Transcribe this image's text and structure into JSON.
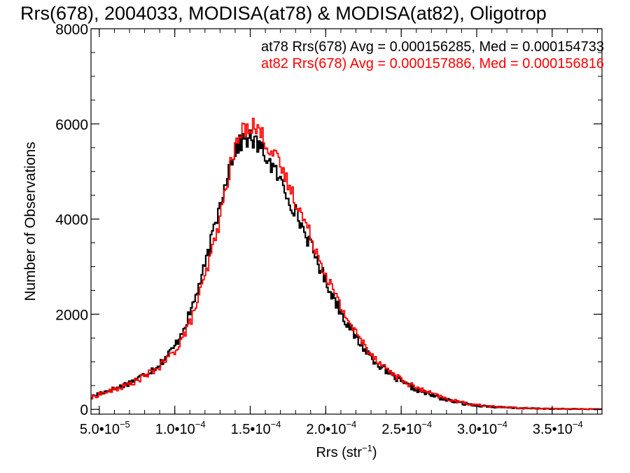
{
  "chart_data": {
    "type": "line",
    "title": "Rrs(678), 2004033, MODISA(at78) & MODISA(at82), Oligotrop",
    "xlabel": "Rrs (str",
    "xlabel_sup": "−1",
    "xlabel_close": ")",
    "ylabel": "Number of Observations",
    "xlim": [
      4.45e-05,
      0.000383
    ],
    "ylim": [
      -100,
      8000
    ],
    "x_ticks": [
      {
        "v": 5e-05,
        "m": "5.0•10",
        "e": "−5"
      },
      {
        "v": 0.0001,
        "m": "1.0•10",
        "e": "−4"
      },
      {
        "v": 0.00015,
        "m": "1.5•10",
        "e": "−4"
      },
      {
        "v": 0.0002,
        "m": "2.0•10",
        "e": "−4"
      },
      {
        "v": 0.00025,
        "m": "2.5•10",
        "e": "−4"
      },
      {
        "v": 0.0003,
        "m": "3.0•10",
        "e": "−4"
      },
      {
        "v": 0.00035,
        "m": "3.5•10",
        "e": "−4"
      }
    ],
    "y_ticks": [
      {
        "v": 0,
        "label": "0"
      },
      {
        "v": 2000,
        "label": "2000"
      },
      {
        "v": 4000,
        "label": "4000"
      },
      {
        "v": 6000,
        "label": "6000"
      },
      {
        "v": 8000,
        "label": "8000"
      }
    ],
    "series": [
      {
        "name": "at78",
        "color": "#000000",
        "annotation": "at78 Rrs(678) Avg = 0.000156285, Med = 0.000154733",
        "x": [
          4.45e-05,
          5e-05,
          6e-05,
          7e-05,
          8e-05,
          9e-05,
          0.0001,
          0.00011,
          0.00012,
          0.00013,
          0.000135,
          0.00014,
          0.000145,
          0.00015,
          0.000155,
          0.00016,
          0.00017,
          0.00018,
          0.00019,
          0.0002,
          0.00021,
          0.00022,
          0.00023,
          0.00024,
          0.00025,
          0.00026,
          0.00027,
          0.00028,
          0.00029,
          0.0003,
          0.00031,
          0.00032,
          0.00033,
          0.00034,
          0.00035,
          0.00036,
          0.00037,
          0.00038,
          0.000383
        ],
        "y": [
          250,
          340,
          430,
          560,
          730,
          950,
          1320,
          2000,
          3000,
          4300,
          5000,
          5450,
          5650,
          5700,
          5550,
          5350,
          4800,
          4150,
          3450,
          2700,
          2050,
          1500,
          1100,
          800,
          570,
          420,
          300,
          200,
          130,
          85,
          55,
          35,
          25,
          18,
          12,
          9,
          7,
          5,
          5
        ]
      },
      {
        "name": "at82",
        "color": "#ff0000",
        "annotation": "at82 Rrs(678) Avg = 0.000157886, Med = 0.000156816",
        "x": [
          4.45e-05,
          5e-05,
          6e-05,
          7e-05,
          8e-05,
          9e-05,
          0.0001,
          0.00011,
          0.00012,
          0.00013,
          0.000135,
          0.00014,
          0.000145,
          0.00015,
          0.000155,
          0.00016,
          0.00017,
          0.00018,
          0.00019,
          0.0002,
          0.00021,
          0.00022,
          0.00023,
          0.00024,
          0.00025,
          0.00026,
          0.00027,
          0.00028,
          0.00029,
          0.0003,
          0.00031,
          0.00032,
          0.00033,
          0.00034,
          0.00035,
          0.00036,
          0.00037,
          0.00038,
          0.000383
        ],
        "y": [
          230,
          320,
          410,
          530,
          690,
          900,
          1220,
          1800,
          2750,
          4000,
          4850,
          5500,
          5850,
          6000,
          5900,
          5650,
          5100,
          4400,
          3650,
          2850,
          2150,
          1600,
          1180,
          860,
          620,
          450,
          330,
          220,
          145,
          95,
          60,
          40,
          28,
          20,
          14,
          10,
          8,
          6,
          5
        ]
      }
    ]
  }
}
